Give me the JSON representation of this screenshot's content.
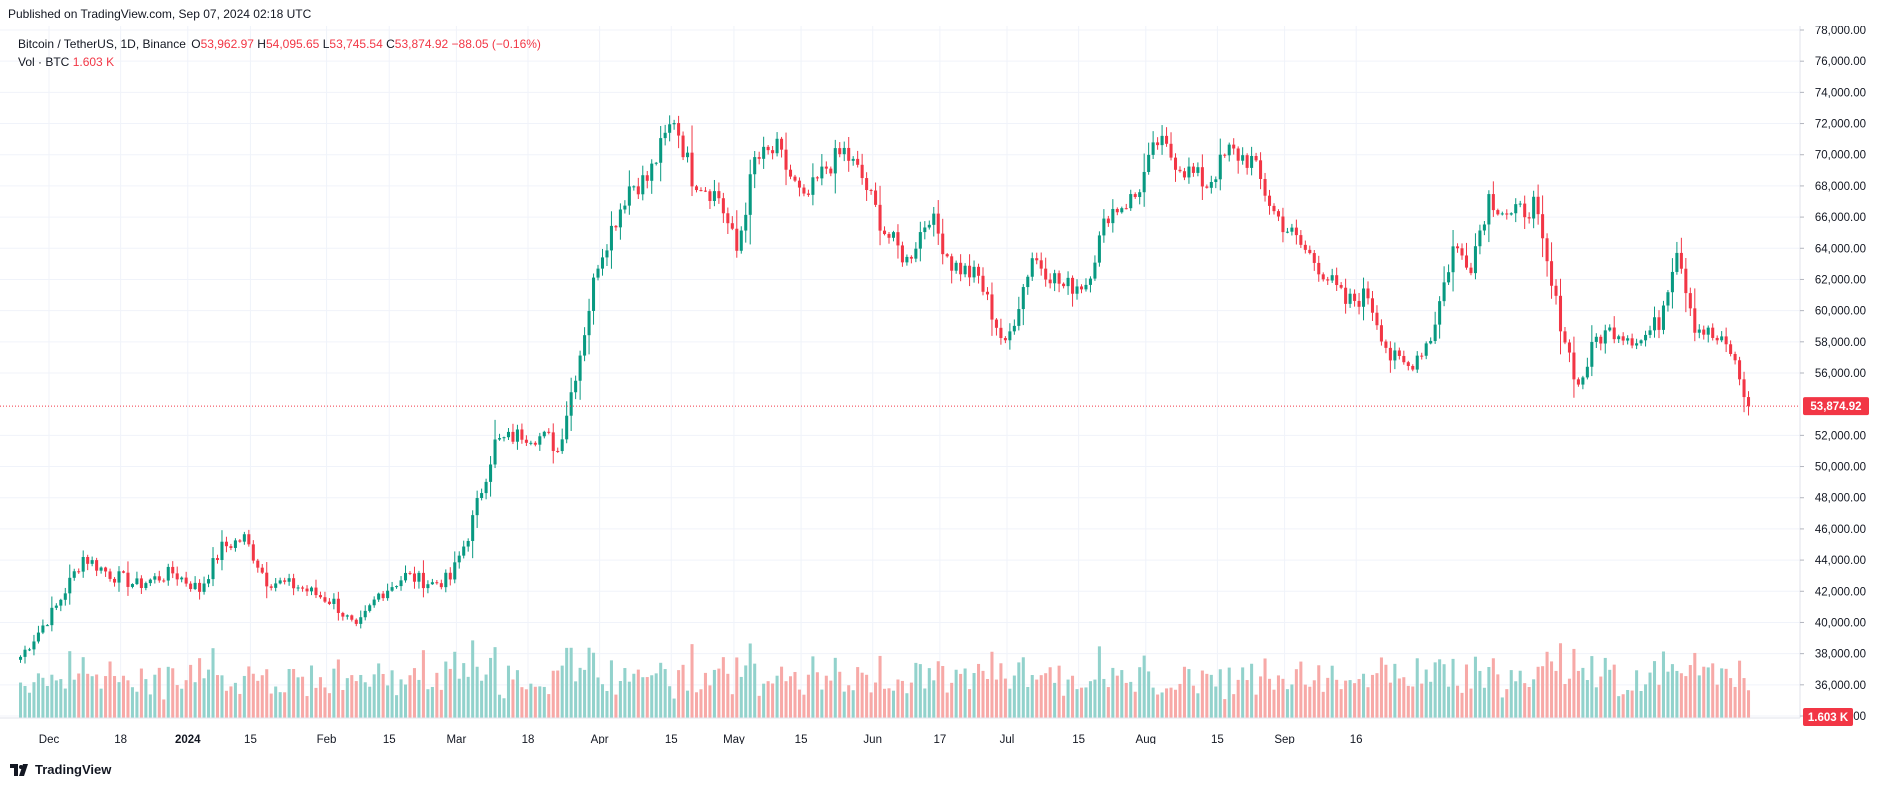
{
  "header": {
    "published": "Published on TradingView.com, Sep 07, 2024 02:18 UTC"
  },
  "legend": {
    "symbol": "Bitcoin / TetherUS, 1D, Binance",
    "o_label": "O",
    "o_value": "53,962.97",
    "h_label": "H",
    "h_value": "54,095.65",
    "l_label": "L",
    "l_value": "53,745.54",
    "c_label": "C",
    "c_value": "53,874.92",
    "change": "−88.05 (−0.16%)",
    "vol_label": "Vol · BTC",
    "vol_value": "1.603 K"
  },
  "price_tag": "53,874.92",
  "volume_tag": "1.603 K",
  "footer": {
    "brand": "TradingView"
  },
  "colors": {
    "up": "#089981",
    "down": "#f23645",
    "up_vol": "#92d2cc",
    "down_vol": "#f7a9a7",
    "grid": "#f0f3fa"
  },
  "chart_data": {
    "type": "candlestick",
    "symbol": "Bitcoin / TetherUS",
    "interval": "1D",
    "exchange": "Binance",
    "last_close": 53874.92,
    "y_ticks": [
      "78,000.00",
      "76,000.00",
      "74,000.00",
      "72,000.00",
      "70,000.00",
      "68,000.00",
      "66,000.00",
      "64,000.00",
      "62,000.00",
      "60,000.00",
      "58,000.00",
      "56,000.00",
      "52,000.00",
      "50,000.00",
      "48,000.00",
      "46,000.00",
      "44,000.00",
      "42,000.00",
      "40,000.00",
      "38,000.00",
      "36,000.00",
      "34,000.00"
    ],
    "ylim": [
      34000,
      78000
    ],
    "x_ticks": [
      "Dec",
      "18",
      "2024",
      "15",
      "Feb",
      "15",
      "Mar",
      "18",
      "Apr",
      "15",
      "May",
      "15",
      "Jun",
      "17",
      "Jul",
      "15",
      "Aug",
      "15",
      "Sep",
      "16"
    ],
    "grid": true,
    "anchors": [
      [
        0,
        37800
      ],
      [
        8,
        41000
      ],
      [
        14,
        44200
      ],
      [
        20,
        43100
      ],
      [
        26,
        42400
      ],
      [
        34,
        43200
      ],
      [
        40,
        42100
      ],
      [
        45,
        44800
      ],
      [
        50,
        45400
      ],
      [
        55,
        42700
      ],
      [
        62,
        42300
      ],
      [
        70,
        41300
      ],
      [
        75,
        39500
      ],
      [
        80,
        41800
      ],
      [
        86,
        43000
      ],
      [
        92,
        42500
      ],
      [
        96,
        42800
      ],
      [
        100,
        45600
      ],
      [
        106,
        51500
      ],
      [
        112,
        52100
      ],
      [
        118,
        51800
      ],
      [
        120,
        51000
      ],
      [
        125,
        57300
      ],
      [
        129,
        63200
      ],
      [
        136,
        68000
      ],
      [
        140,
        68400
      ],
      [
        146,
        72400
      ],
      [
        150,
        68600
      ],
      [
        156,
        67300
      ],
      [
        160,
        63800
      ],
      [
        164,
        69600
      ],
      [
        169,
        70300
      ],
      [
        175,
        66900
      ],
      [
        180,
        69200
      ],
      [
        184,
        70200
      ],
      [
        188,
        68500
      ],
      [
        193,
        65100
      ],
      [
        198,
        63200
      ],
      [
        203,
        66200
      ],
      [
        208,
        63000
      ],
      [
        214,
        62100
      ],
      [
        220,
        57600
      ],
      [
        226,
        63500
      ],
      [
        233,
        61500
      ],
      [
        238,
        61800
      ],
      [
        243,
        66300
      ],
      [
        249,
        67300
      ],
      [
        254,
        70800
      ],
      [
        260,
        69100
      ],
      [
        265,
        68100
      ],
      [
        270,
        70200
      ],
      [
        275,
        69600
      ],
      [
        280,
        66300
      ],
      [
        285,
        64500
      ],
      [
        290,
        62900
      ],
      [
        296,
        60500
      ],
      [
        301,
        61000
      ],
      [
        306,
        57000
      ],
      [
        310,
        56400
      ],
      [
        315,
        58300
      ],
      [
        320,
        64000
      ],
      [
        324,
        63100
      ],
      [
        328,
        67300
      ],
      [
        333,
        66000
      ],
      [
        338,
        66800
      ],
      [
        342,
        61500
      ],
      [
        345,
        58200
      ],
      [
        348,
        55100
      ],
      [
        352,
        58200
      ],
      [
        356,
        58800
      ],
      [
        362,
        58100
      ],
      [
        366,
        59300
      ],
      [
        370,
        64200
      ],
      [
        374,
        59100
      ],
      [
        378,
        58300
      ],
      [
        382,
        57400
      ],
      [
        386,
        53875
      ]
    ]
  }
}
